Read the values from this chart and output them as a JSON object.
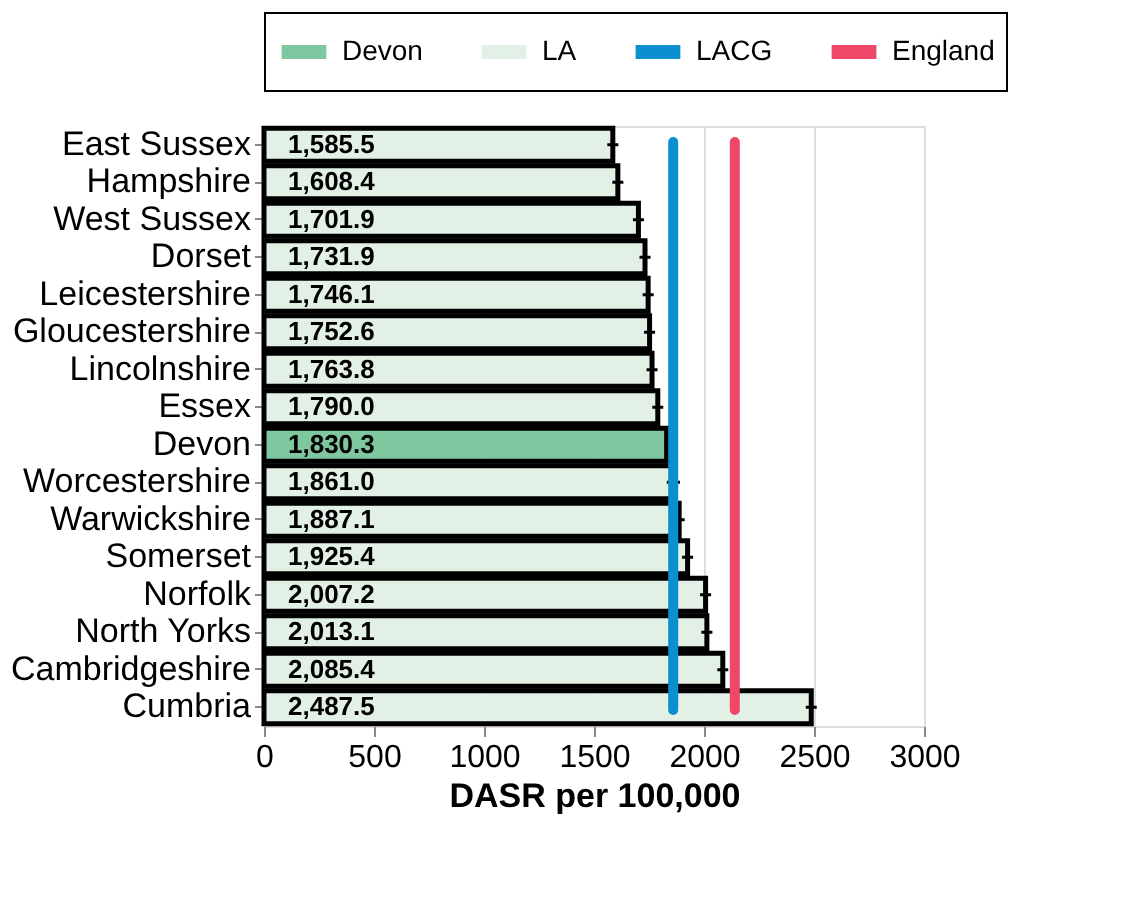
{
  "chart_data": {
    "type": "bar",
    "orientation": "horizontal",
    "xlabel": "DASR per 100,000",
    "categories": [
      "East Sussex",
      "Hampshire",
      "West Sussex",
      "Dorset",
      "Leicestershire",
      "Gloucestershire",
      "Lincolnshire",
      "Essex",
      "Devon",
      "Worcestershire",
      "Warwickshire",
      "Somerset",
      "Norfolk",
      "North Yorks",
      "Cambridgeshire",
      "Cumbria"
    ],
    "series": [
      {
        "name": "Devon",
        "color": "#7fc79f",
        "values": [
          null,
          null,
          null,
          null,
          null,
          null,
          null,
          null,
          1830.3,
          null,
          null,
          null,
          null,
          null,
          null,
          null
        ],
        "errors": [
          null,
          null,
          null,
          null,
          null,
          null,
          null,
          null,
          10,
          null,
          null,
          null,
          null,
          null,
          null,
          null
        ],
        "value_labels": [
          null,
          null,
          null,
          null,
          null,
          null,
          null,
          null,
          "1,830.3",
          null,
          null,
          null,
          null,
          null,
          null,
          null
        ]
      },
      {
        "name": "LA",
        "color": "#e2f0e6",
        "values": [
          1585.5,
          1608.4,
          1701.9,
          1731.9,
          1746.1,
          1752.6,
          1763.8,
          1790.0,
          null,
          1861.0,
          1887.1,
          1925.4,
          2007.2,
          2013.1,
          2085.4,
          2487.5
        ],
        "errors": [
          25,
          25,
          25,
          25,
          25,
          25,
          25,
          25,
          null,
          30,
          25,
          25,
          25,
          25,
          25,
          25
        ],
        "value_labels": [
          "1,585.5",
          "1,608.4",
          "1,701.9",
          "1,731.9",
          "1,746.1",
          "1,752.6",
          "1,763.8",
          "1,790.0",
          null,
          "1,861.0",
          "1,887.1",
          "1,925.4",
          "2,007.2",
          "2,013.1",
          "2,085.4",
          "2,487.5"
        ]
      }
    ],
    "ref_lines": [
      {
        "axis": "x",
        "value": 1860,
        "label": "LACG",
        "color": "#0c8fcf"
      },
      {
        "axis": "x",
        "value": 2140,
        "label": "England",
        "color": "#ef4767"
      }
    ],
    "xlim": [
      0,
      3000
    ],
    "xticks": [
      0,
      500,
      1000,
      1500,
      2000,
      2500,
      3000
    ],
    "grid": "x",
    "legend": "top"
  }
}
